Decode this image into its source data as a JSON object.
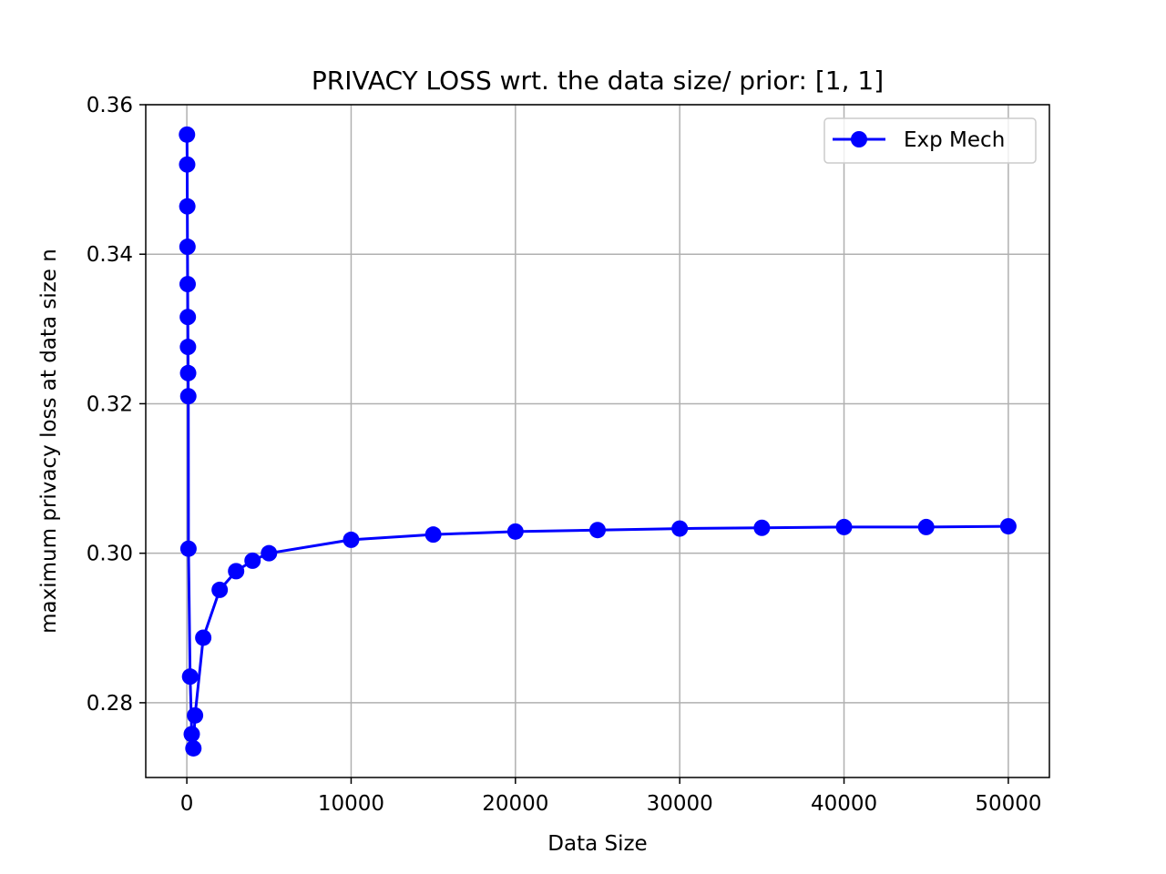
{
  "chart_data": {
    "type": "line",
    "title": "PRIVACY LOSS wrt. the data size/ prior: [1, 1]",
    "xlabel": "Data Size",
    "ylabel": "maximum privacy loss at data size n",
    "xlim": [
      -2500,
      52500
    ],
    "ylim": [
      0.27,
      0.36
    ],
    "xticks": [
      0,
      10000,
      20000,
      30000,
      40000,
      50000
    ],
    "xtick_labels": [
      "0",
      "10000",
      "20000",
      "30000",
      "40000",
      "50000"
    ],
    "yticks": [
      0.28,
      0.3,
      0.32,
      0.34,
      0.36
    ],
    "ytick_labels": [
      "0.28",
      "0.30",
      "0.32",
      "0.34",
      "0.36"
    ],
    "grid": true,
    "legend_position": "top-right",
    "series": [
      {
        "name": "Exp Mech",
        "color": "#0000ff",
        "marker": "circle",
        "x": [
          10,
          20,
          30,
          40,
          50,
          60,
          70,
          80,
          90,
          100,
          200,
          300,
          400,
          500,
          1000,
          2000,
          3000,
          4000,
          5000,
          10000,
          15000,
          20000,
          25000,
          30000,
          35000,
          40000,
          45000,
          50000
        ],
        "y": [
          0.356,
          0.352,
          0.3464,
          0.341,
          0.336,
          0.3316,
          0.3276,
          0.3241,
          0.321,
          0.3006,
          0.2835,
          0.2758,
          0.2739,
          0.2783,
          0.2887,
          0.2951,
          0.2976,
          0.299,
          0.3,
          0.3018,
          0.3025,
          0.3029,
          0.3031,
          0.3033,
          0.3034,
          0.3035,
          0.3035,
          0.3036
        ]
      }
    ]
  }
}
